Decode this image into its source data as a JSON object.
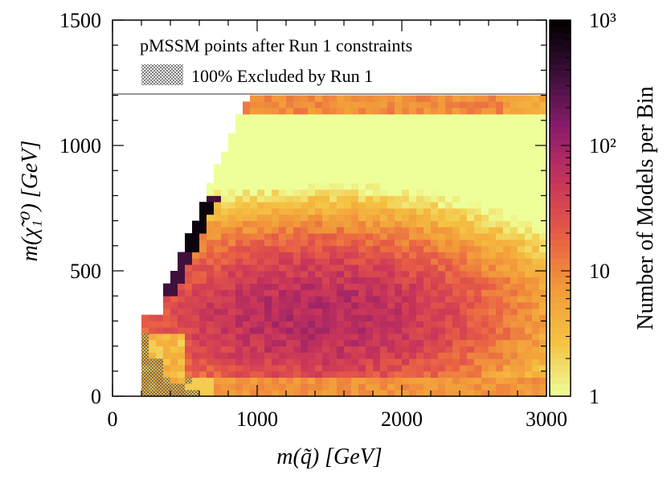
{
  "chart_data": {
    "type": "heatmap",
    "title": "",
    "xlabel": "m(q̃) [GeV]",
    "ylabel": "m(χ̃₁⁰) [GeV]",
    "colorbar_label": "Number of Models per Bin",
    "xlim": [
      0,
      3000
    ],
    "ylim": [
      0,
      1500
    ],
    "x_ticks": [
      "0",
      "1000",
      "2000",
      "3000"
    ],
    "y_ticks": [
      "0",
      "500",
      "1000",
      "1500"
    ],
    "x_tick_values": [
      0,
      1000,
      2000,
      3000
    ],
    "y_tick_values": [
      0,
      500,
      1000,
      1500
    ],
    "colorbar_ticks": [
      "1",
      "10",
      "10²",
      "10³"
    ],
    "colorbar_tick_values": [
      1,
      10,
      100,
      1000
    ],
    "colorbar_range": [
      1,
      1000
    ],
    "bin_width_x": 50,
    "bin_width_y": 25,
    "populated_region": {
      "x_max": 3000,
      "y_max": 1200,
      "diagonal_edge": "m(chi) < m(q) roughly",
      "min_x": 200
    },
    "legend": {
      "position": "top",
      "title": "pMSSM points after Run 1 constraints",
      "entries": [
        {
          "label": "100% Excluded by Run 1",
          "style": "hatched"
        }
      ]
    },
    "colormap": [
      "#eeff99",
      "#f5c242",
      "#f29b3a",
      "#e85d45",
      "#c8345a",
      "#8a1c6c",
      "#3c0f3a",
      "#000000"
    ]
  }
}
